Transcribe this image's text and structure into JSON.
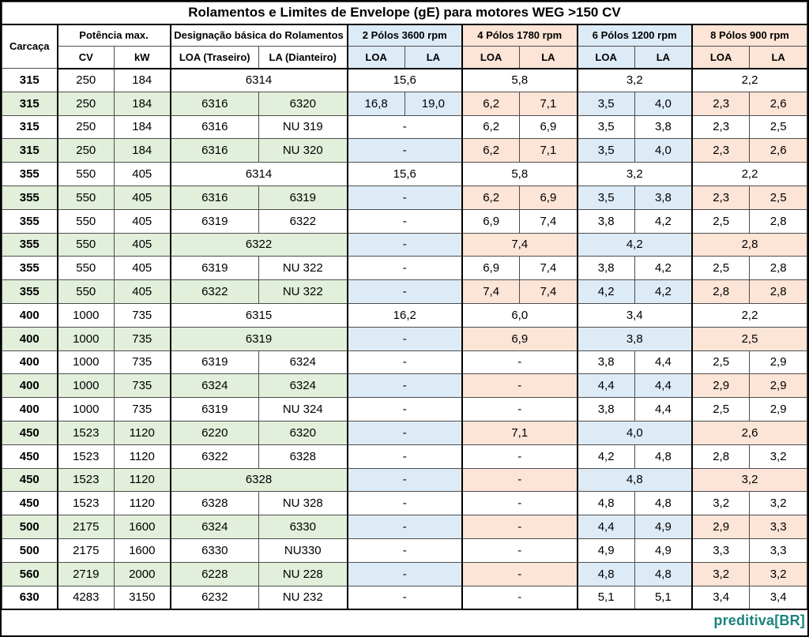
{
  "title": "Rolamentos e Limites de Envelope (gE) para motores WEG >150 CV",
  "columns": {
    "carcaca": "Carcaça",
    "potencia_max": "Potência max.",
    "designacao": "Designação básica do Rolamentos",
    "cv": "CV",
    "kw": "kW",
    "loa_traseiro": "LOA (Traseiro)",
    "la_dianteiro": "LA (Dianteiro)",
    "loa": "LOA",
    "la": "LA",
    "pole_groups": [
      {
        "label": "2 Pólos 3600 rpm",
        "tint": "blue"
      },
      {
        "label": "4 Pólos 1780 rpm",
        "tint": "orange"
      },
      {
        "label": "6 Pólos 1200 rpm",
        "tint": "blue"
      },
      {
        "label": "8 Pólos 900 rpm",
        "tint": "orange"
      }
    ]
  },
  "colors": {
    "blue_tint": "#DDEBF7",
    "orange_tint": "#FCE4D6",
    "green_tint": "#E2EFDA",
    "logo_teal": "#1A837B",
    "grid_line": "#4d4d4d",
    "heavy_line": "#000000"
  },
  "rows": [
    {
      "shade": "white",
      "carcaca": "315",
      "cv": "250",
      "kw": "184",
      "bearing": [
        "6314"
      ],
      "poles": [
        [
          "15,6"
        ],
        [
          "5,8"
        ],
        [
          "3,2"
        ],
        [
          "2,2"
        ]
      ]
    },
    {
      "shade": "green",
      "carcaca": "315",
      "cv": "250",
      "kw": "184",
      "bearing": [
        "6316",
        "6320"
      ],
      "poles": [
        [
          "16,8",
          "19,0"
        ],
        [
          "6,2",
          "7,1"
        ],
        [
          "3,5",
          "4,0"
        ],
        [
          "2,3",
          "2,6"
        ]
      ]
    },
    {
      "shade": "white",
      "carcaca": "315",
      "cv": "250",
      "kw": "184",
      "bearing": [
        "6316",
        "NU 319"
      ],
      "poles": [
        [
          "-"
        ],
        [
          "6,2",
          "6,9"
        ],
        [
          "3,5",
          "3,8"
        ],
        [
          "2,3",
          "2,5"
        ]
      ]
    },
    {
      "shade": "green",
      "carcaca": "315",
      "cv": "250",
      "kw": "184",
      "bearing": [
        "6316",
        "NU 320"
      ],
      "poles": [
        [
          "-"
        ],
        [
          "6,2",
          "7,1"
        ],
        [
          "3,5",
          "4,0"
        ],
        [
          "2,3",
          "2,6"
        ]
      ]
    },
    {
      "shade": "white",
      "carcaca": "355",
      "cv": "550",
      "kw": "405",
      "bearing": [
        "6314"
      ],
      "poles": [
        [
          "15,6"
        ],
        [
          "5,8"
        ],
        [
          "3,2"
        ],
        [
          "2,2"
        ]
      ]
    },
    {
      "shade": "green",
      "carcaca": "355",
      "cv": "550",
      "kw": "405",
      "bearing": [
        "6316",
        "6319"
      ],
      "poles": [
        [
          "-"
        ],
        [
          "6,2",
          "6,9"
        ],
        [
          "3,5",
          "3,8"
        ],
        [
          "2,3",
          "2,5"
        ]
      ]
    },
    {
      "shade": "white",
      "carcaca": "355",
      "cv": "550",
      "kw": "405",
      "bearing": [
        "6319",
        "6322"
      ],
      "poles": [
        [
          "-"
        ],
        [
          "6,9",
          "7,4"
        ],
        [
          "3,8",
          "4,2"
        ],
        [
          "2,5",
          "2,8"
        ]
      ]
    },
    {
      "shade": "green",
      "carcaca": "355",
      "cv": "550",
      "kw": "405",
      "bearing": [
        "6322"
      ],
      "poles": [
        [
          "-"
        ],
        [
          "7,4"
        ],
        [
          "4,2"
        ],
        [
          "2,8"
        ]
      ]
    },
    {
      "shade": "white",
      "carcaca": "355",
      "cv": "550",
      "kw": "405",
      "bearing": [
        "6319",
        "NU 322"
      ],
      "poles": [
        [
          "-"
        ],
        [
          "6,9",
          "7,4"
        ],
        [
          "3,8",
          "4,2"
        ],
        [
          "2,5",
          "2,8"
        ]
      ]
    },
    {
      "shade": "green",
      "carcaca": "355",
      "cv": "550",
      "kw": "405",
      "bearing": [
        "6322",
        "NU 322"
      ],
      "poles": [
        [
          "-"
        ],
        [
          "7,4",
          "7,4"
        ],
        [
          "4,2",
          "4,2"
        ],
        [
          "2,8",
          "2,8"
        ]
      ]
    },
    {
      "shade": "white",
      "carcaca": "400",
      "cv": "1000",
      "kw": "735",
      "bearing": [
        "6315"
      ],
      "poles": [
        [
          "16,2"
        ],
        [
          "6,0"
        ],
        [
          "3,4"
        ],
        [
          "2,2"
        ]
      ]
    },
    {
      "shade": "green",
      "carcaca": "400",
      "cv": "1000",
      "kw": "735",
      "bearing": [
        "6319"
      ],
      "poles": [
        [
          "-"
        ],
        [
          "6,9"
        ],
        [
          "3,8"
        ],
        [
          "2,5"
        ]
      ]
    },
    {
      "shade": "white",
      "carcaca": "400",
      "cv": "1000",
      "kw": "735",
      "bearing": [
        "6319",
        "6324"
      ],
      "poles": [
        [
          "-"
        ],
        [
          "-"
        ],
        [
          "3,8",
          "4,4"
        ],
        [
          "2,5",
          "2,9"
        ]
      ]
    },
    {
      "shade": "green",
      "carcaca": "400",
      "cv": "1000",
      "kw": "735",
      "bearing": [
        "6324",
        "6324"
      ],
      "poles": [
        [
          "-"
        ],
        [
          "-"
        ],
        [
          "4,4",
          "4,4"
        ],
        [
          "2,9",
          "2,9"
        ]
      ]
    },
    {
      "shade": "white",
      "carcaca": "400",
      "cv": "1000",
      "kw": "735",
      "bearing": [
        "6319",
        "NU 324"
      ],
      "poles": [
        [
          "-"
        ],
        [
          "-"
        ],
        [
          "3,8",
          "4,4"
        ],
        [
          "2,5",
          "2,9"
        ]
      ]
    },
    {
      "shade": "green",
      "carcaca": "450",
      "cv": "1523",
      "kw": "1120",
      "bearing": [
        "6220",
        "6320"
      ],
      "poles": [
        [
          "-"
        ],
        [
          "7,1"
        ],
        [
          "4,0"
        ],
        [
          "2,6"
        ]
      ]
    },
    {
      "shade": "white",
      "carcaca": "450",
      "cv": "1523",
      "kw": "1120",
      "bearing": [
        "6322",
        "6328"
      ],
      "poles": [
        [
          "-"
        ],
        [
          "-"
        ],
        [
          "4,2",
          "4,8"
        ],
        [
          "2,8",
          "3,2"
        ]
      ]
    },
    {
      "shade": "green",
      "carcaca": "450",
      "cv": "1523",
      "kw": "1120",
      "bearing": [
        "6328"
      ],
      "poles": [
        [
          "-"
        ],
        [
          "-"
        ],
        [
          "4,8"
        ],
        [
          "3,2"
        ]
      ]
    },
    {
      "shade": "white",
      "carcaca": "450",
      "cv": "1523",
      "kw": "1120",
      "bearing": [
        "6328",
        "NU 328"
      ],
      "poles": [
        [
          "-"
        ],
        [
          "-"
        ],
        [
          "4,8",
          "4,8"
        ],
        [
          "3,2",
          "3,2"
        ]
      ]
    },
    {
      "shade": "green",
      "carcaca": "500",
      "cv": "2175",
      "kw": "1600",
      "bearing": [
        "6324",
        "6330"
      ],
      "poles": [
        [
          "-"
        ],
        [
          "-"
        ],
        [
          "4,4",
          "4,9"
        ],
        [
          "2,9",
          "3,3"
        ]
      ]
    },
    {
      "shade": "white",
      "carcaca": "500",
      "cv": "2175",
      "kw": "1600",
      "bearing": [
        "6330",
        "NU330"
      ],
      "poles": [
        [
          "-"
        ],
        [
          "-"
        ],
        [
          "4,9",
          "4,9"
        ],
        [
          "3,3",
          "3,3"
        ]
      ]
    },
    {
      "shade": "green",
      "carcaca": "560",
      "cv": "2719",
      "kw": "2000",
      "bearing": [
        "6228",
        "NU 228"
      ],
      "poles": [
        [
          "-"
        ],
        [
          "-"
        ],
        [
          "4,8",
          "4,8"
        ],
        [
          "3,2",
          "3,2"
        ]
      ]
    },
    {
      "shade": "white",
      "carcaca": "630",
      "cv": "4283",
      "kw": "3150",
      "bearing": [
        "6232",
        "NU 232"
      ],
      "poles": [
        [
          "-"
        ],
        [
          "-"
        ],
        [
          "5,1",
          "5,1"
        ],
        [
          "3,4",
          "3,4"
        ]
      ]
    }
  ],
  "footer": {
    "logo": "preditiva[BR]"
  }
}
